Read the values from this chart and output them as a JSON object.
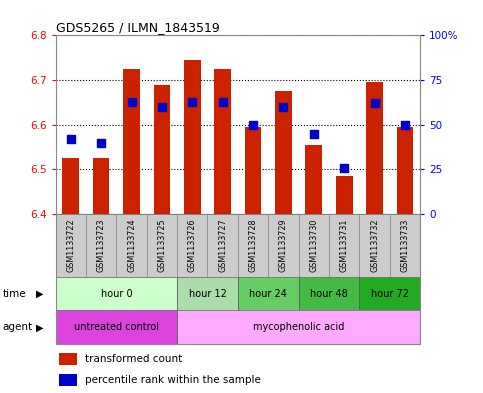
{
  "title": "GDS5265 / ILMN_1843519",
  "samples": [
    "GSM1133722",
    "GSM1133723",
    "GSM1133724",
    "GSM1133725",
    "GSM1133726",
    "GSM1133727",
    "GSM1133728",
    "GSM1133729",
    "GSM1133730",
    "GSM1133731",
    "GSM1133732",
    "GSM1133733"
  ],
  "bar_bottom": 6.4,
  "transformed_count": [
    6.525,
    6.525,
    6.725,
    6.69,
    6.745,
    6.725,
    6.595,
    6.675,
    6.555,
    6.485,
    6.695,
    6.595
  ],
  "percentile_rank": [
    42,
    40,
    63,
    60,
    63,
    63,
    50,
    60,
    45,
    26,
    62,
    50
  ],
  "ylim": [
    6.4,
    6.8
  ],
  "yticks_left": [
    6.4,
    6.5,
    6.6,
    6.7,
    6.8
  ],
  "yticks_right": [
    0,
    25,
    50,
    75,
    100
  ],
  "bar_color": "#cc2200",
  "dot_color": "#0000cc",
  "time_groups": [
    {
      "label": "hour 0",
      "start": 0,
      "end": 3,
      "color": "#ccffcc"
    },
    {
      "label": "hour 12",
      "start": 4,
      "end": 5,
      "color": "#aaddaa"
    },
    {
      "label": "hour 24",
      "start": 6,
      "end": 7,
      "color": "#66cc66"
    },
    {
      "label": "hour 48",
      "start": 8,
      "end": 9,
      "color": "#44bb44"
    },
    {
      "label": "hour 72",
      "start": 10,
      "end": 11,
      "color": "#22aa22"
    }
  ],
  "agent_groups": [
    {
      "label": "untreated control",
      "start": 0,
      "end": 3,
      "color": "#dd44dd"
    },
    {
      "label": "mycophenolic acid",
      "start": 4,
      "end": 11,
      "color": "#ffaaff"
    }
  ],
  "legend_red": "transformed count",
  "legend_blue": "percentile rank within the sample",
  "bar_width": 0.55,
  "dot_size": 28,
  "background_color": "#ffffff",
  "sample_bg_color": "#cccccc",
  "outer_border_color": "#aaaaaa"
}
